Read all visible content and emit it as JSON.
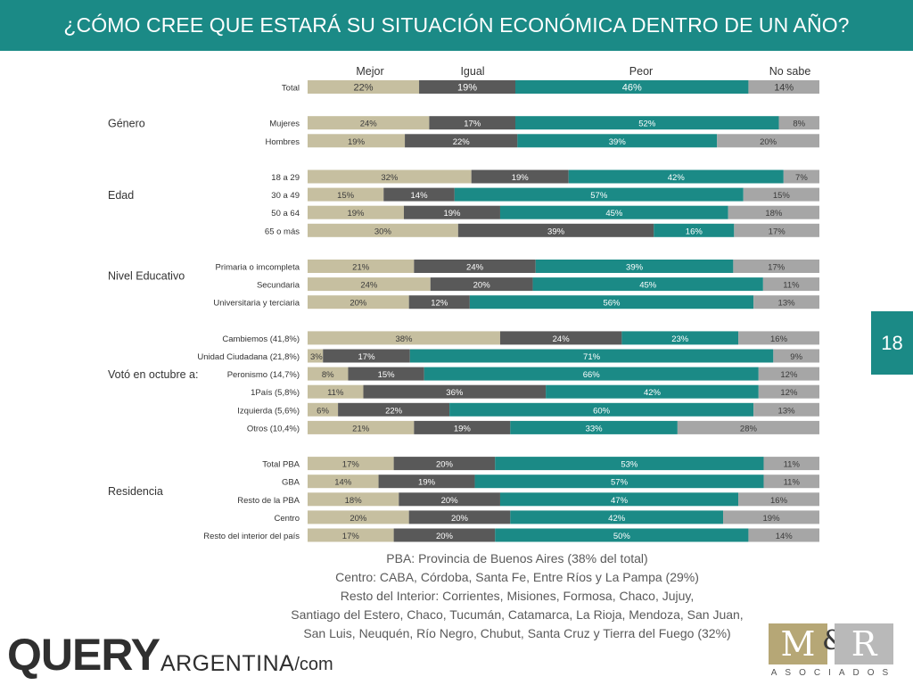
{
  "slide": {
    "title": "¿CÓMO CREE QUE ESTARÁ SU SITUACIÓN ECONÓMICA DENTRO DE UN AÑO?",
    "page_number": "18"
  },
  "colors": {
    "header": "#1b8a86",
    "Mejor": "#c6bfa0",
    "Igual": "#595959",
    "Peor": "#1b8a86",
    "No sabe": "#a6a6a6",
    "bar_text_dark": "#3b3b3b",
    "bar_text_light": "#ffffff"
  },
  "chart_data": {
    "type": "bar",
    "orientation": "horizontal",
    "stacked": true,
    "unit": "%",
    "legend": [
      "Mejor",
      "Igual",
      "Peor",
      "No sabe"
    ],
    "legend_position": "top",
    "groups": [
      {
        "label": "",
        "rows": [
          {
            "label": "Total",
            "values": [
              22,
              19,
              46,
              14
            ]
          }
        ]
      },
      {
        "label": "Género",
        "rows": [
          {
            "label": "Mujeres",
            "values": [
              24,
              17,
              52,
              8
            ]
          },
          {
            "label": "Hombres",
            "values": [
              19,
              22,
              39,
              20
            ]
          }
        ]
      },
      {
        "label": "Edad",
        "rows": [
          {
            "label": "18 a 29",
            "values": [
              32,
              19,
              42,
              7
            ]
          },
          {
            "label": "30 a 49",
            "values": [
              15,
              14,
              57,
              15
            ]
          },
          {
            "label": "50 a 64",
            "values": [
              19,
              19,
              45,
              18
            ]
          },
          {
            "label": "65 o más",
            "values": [
              30,
              39,
              16,
              17
            ]
          }
        ]
      },
      {
        "label": "Nivel Educativo",
        "rows": [
          {
            "label": "Primaria o imcompleta",
            "values": [
              21,
              24,
              39,
              17
            ]
          },
          {
            "label": "Secundaria",
            "values": [
              24,
              20,
              45,
              11
            ]
          },
          {
            "label": "Universitaria y terciaria",
            "values": [
              20,
              12,
              56,
              13
            ]
          }
        ]
      },
      {
        "label": "Votó en octubre a:",
        "rows": [
          {
            "label": "Cambiemos (41,8%)",
            "values": [
              38,
              24,
              23,
              16
            ]
          },
          {
            "label": "Unidad Ciudadana (21,8%)",
            "values": [
              3,
              17,
              71,
              9
            ]
          },
          {
            "label": "Peronismo (14,7%)",
            "values": [
              8,
              15,
              66,
              12
            ]
          },
          {
            "label": "1País (5,8%)",
            "values": [
              11,
              36,
              42,
              12
            ]
          },
          {
            "label": "Izquierda (5,6%)",
            "values": [
              6,
              22,
              60,
              13
            ]
          },
          {
            "label": "Otros (10,4%)",
            "values": [
              21,
              19,
              33,
              28
            ]
          }
        ]
      },
      {
        "label": "Residencia",
        "rows": [
          {
            "label": "Total PBA",
            "values": [
              17,
              20,
              53,
              11
            ]
          },
          {
            "label": "GBA",
            "values": [
              14,
              19,
              57,
              11
            ]
          },
          {
            "label": "Resto de la PBA",
            "values": [
              18,
              20,
              47,
              16
            ]
          },
          {
            "label": "Centro",
            "values": [
              20,
              20,
              42,
              19
            ]
          },
          {
            "label": "Resto del interior del país",
            "values": [
              17,
              20,
              50,
              14
            ]
          }
        ]
      }
    ]
  },
  "footnote": [
    "PBA: Provincia de Buenos Aires (38% del total)",
    "Centro: CABA, Córdoba, Santa Fe, Entre Ríos y La Pampa (29%)",
    "Resto del Interior: Corrientes, Misiones, Formosa, Chaco, Jujuy,",
    "Santiago del Estero, Chaco, Tucumán, Catamarca, La Rioja, Mendoza, San Juan,",
    "San Luis, Neuquén, Río Negro, Chubut, Santa Cruz y Tierra del Fuego (32%)"
  ],
  "logos": {
    "query_main": "QUERY",
    "query_sub": "ARGENTINA",
    "query_domain": "/com",
    "mr_left": "M",
    "mr_amp": "&",
    "mr_right": "R",
    "mr_sub": "ASOCIADOS"
  }
}
